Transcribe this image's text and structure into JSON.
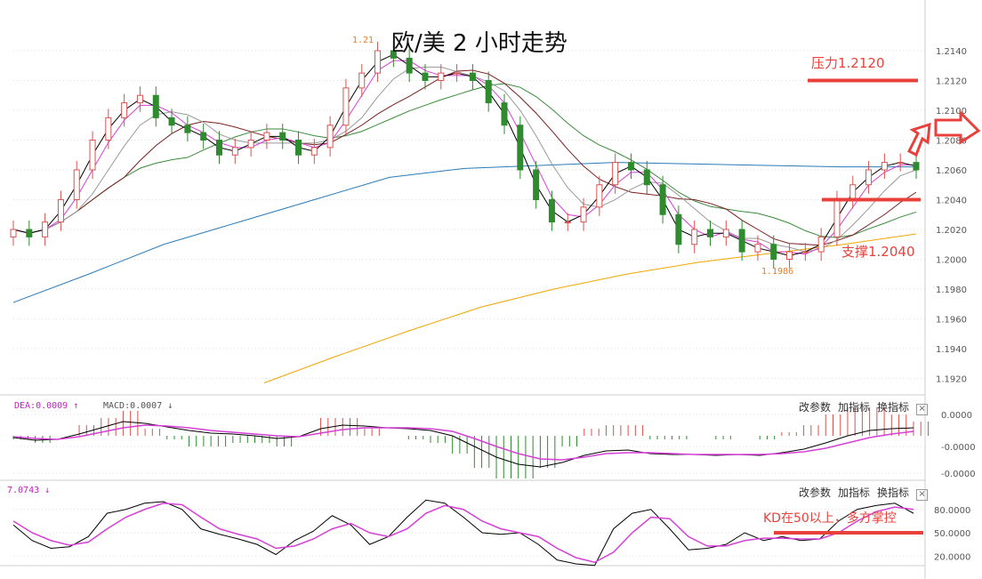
{
  "title": "欧/美 2 小时走势",
  "toolbar": {
    "params": "改参数",
    "add": "加指标",
    "switch": "换指标",
    "close": "×"
  },
  "annotations": {
    "resistance": "压力1.2120",
    "support": "支撑1.2040",
    "kd_note": "KD在50以上，多方掌控",
    "high_label": "1.21",
    "low_label": "1.1986"
  },
  "macd_header": {
    "dea": "DEA:0.0009 ↑",
    "macd": "MACD:0.0007 ↓"
  },
  "kd_header": {
    "value": "7.0743 ↓"
  },
  "colors": {
    "up": "#d9534f",
    "down": "#2e8b2e",
    "resistance": "#e8413c",
    "ma_blue": "#2a7ab8",
    "ma_yellow": "#f0a500",
    "ma_green": "#3a8a3a",
    "ma_brown": "#7a1f1f",
    "ma_pink": "#d63fd6",
    "ma_gray": "#999999",
    "macd_dea": "#d63fd6",
    "kd_d": "#d63fd6"
  },
  "chart_data": {
    "type": "candlestick",
    "title": "欧/美 2 小时走势",
    "y_ticks": [
      "1.2140",
      "1.2120",
      "1.2100",
      "1.2080",
      "1.2060",
      "1.2040",
      "1.2020",
      "1.2000",
      "1.1980",
      "1.1960",
      "1.1940",
      "1.1920"
    ],
    "ylim": [
      1.1915,
      1.2155
    ],
    "closes": [
      1.202,
      1.2015,
      1.2025,
      1.204,
      1.206,
      1.208,
      1.2095,
      1.2105,
      1.211,
      1.2095,
      1.209,
      1.2085,
      1.208,
      1.207,
      1.2075,
      1.208,
      1.2085,
      1.208,
      1.207,
      1.2075,
      1.209,
      1.2115,
      1.2125,
      1.214,
      1.2135,
      1.2125,
      1.212,
      1.2125,
      1.2125,
      1.212,
      1.2105,
      1.209,
      1.206,
      1.204,
      1.2025,
      1.2025,
      1.2035,
      1.205,
      1.2065,
      1.206,
      1.205,
      1.203,
      1.201,
      1.202,
      1.2015,
      1.202,
      1.2005,
      1.201,
      1.2,
      1.2005,
      1.2005,
      1.2015,
      1.204,
      1.205,
      1.206,
      1.2065,
      1.2065,
      1.206
    ],
    "ma_blue": [
      1.1971,
      1.199,
      1.201,
      1.2025,
      1.204,
      1.2055,
      1.2061,
      1.2063,
      1.2065,
      1.2064,
      1.2063,
      1.2062,
      1.2062
    ],
    "ma_yellow": [
      1.1917,
      1.1935,
      1.1952,
      1.1968,
      1.198,
      1.199,
      1.1998,
      1.2004,
      1.201,
      1.2017
    ],
    "resistance": 1.212,
    "support": 1.204,
    "macd": {
      "y_ticks": [
        "0.0000",
        "-0.0000",
        "-0.0000"
      ],
      "dif": [
        -0.2,
        -0.5,
        -0.4,
        0.2,
        0.9,
        1.6,
        1.4,
        1.0,
        0.6,
        0.3,
        0.2,
        0.0,
        -0.3,
        -0.1,
        0.8,
        1.2,
        1.1,
        0.9,
        0.8,
        0.6,
        0.0,
        -1.2,
        -2.4,
        -3.2,
        -3.5,
        -3.0,
        -2.2,
        -1.7,
        -1.6,
        -2.0,
        -2.1,
        -2.1,
        -2.2,
        -2.1,
        -2.2,
        -1.9,
        -1.5,
        -0.8,
        0.0,
        0.6,
        0.8,
        0.9
      ],
      "dea": [
        -0.1,
        -0.3,
        -0.4,
        -0.1,
        0.4,
        0.9,
        1.2,
        1.1,
        0.9,
        0.6,
        0.4,
        0.2,
        0.0,
        -0.1,
        0.3,
        0.7,
        0.9,
        0.9,
        0.9,
        0.8,
        0.5,
        -0.3,
        -1.2,
        -2.0,
        -2.6,
        -2.7,
        -2.4,
        -2.0,
        -1.9,
        -1.9,
        -2.0,
        -2.1,
        -2.1,
        -2.1,
        -2.1,
        -2.0,
        -1.8,
        -1.4,
        -0.8,
        -0.2,
        0.2,
        0.5
      ]
    },
    "kd": {
      "y_ticks": [
        "80.0000",
        "50.0000",
        "20.0000"
      ],
      "k": [
        60,
        40,
        30,
        32,
        45,
        75,
        80,
        88,
        90,
        80,
        55,
        48,
        42,
        35,
        22,
        40,
        52,
        72,
        60,
        35,
        45,
        70,
        92,
        88,
        70,
        50,
        48,
        50,
        35,
        15,
        10,
        8,
        55,
        75,
        80,
        55,
        28,
        30,
        35,
        50,
        40,
        45,
        40,
        42,
        65,
        80,
        85,
        88,
        75
      ],
      "d": [
        65,
        50,
        40,
        34,
        38,
        55,
        70,
        80,
        88,
        86,
        70,
        55,
        48,
        42,
        30,
        33,
        42,
        55,
        62,
        50,
        45,
        55,
        75,
        85,
        80,
        65,
        55,
        50,
        45,
        30,
        18,
        12,
        25,
        50,
        70,
        68,
        45,
        33,
        33,
        40,
        43,
        43,
        42,
        42,
        50,
        65,
        77,
        83,
        80
      ],
      "threshold": 50
    }
  }
}
